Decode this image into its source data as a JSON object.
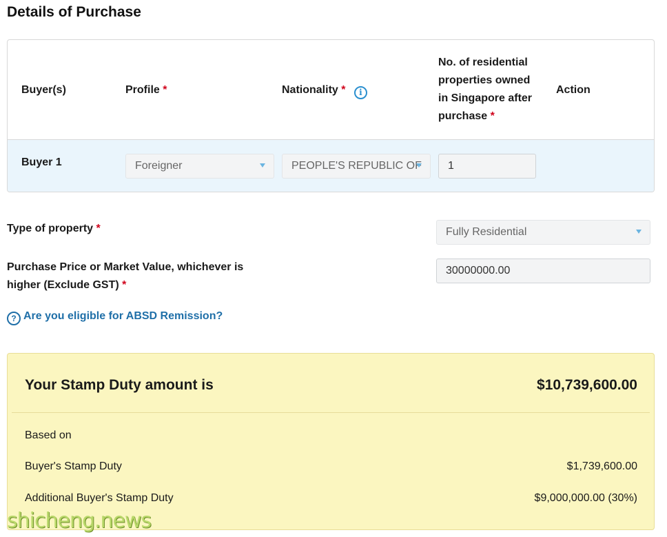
{
  "page": {
    "title": "Details of Purchase"
  },
  "buyers_table": {
    "headers": {
      "buyers": "Buyer(s)",
      "profile": "Profile",
      "nationality": "Nationality",
      "properties_owned": "No. of residential properties owned in Singapore after purchase",
      "action": "Action"
    },
    "required_mark": "*",
    "info_glyph": "i",
    "rows": [
      {
        "buyer_label": "Buyer 1",
        "profile_value": "Foreigner",
        "nationality_value": "PEOPLE'S REPUBLIC OF",
        "properties_owned_value": "1"
      }
    ]
  },
  "form": {
    "property_type_label": "Type of property",
    "property_type_value": "Fully Residential",
    "price_label": "Purchase Price or Market Value, whichever is higher (Exclude GST)",
    "price_value": "30000000.00",
    "remission_link": "Are you eligible for ABSD Remission?",
    "help_glyph": "?"
  },
  "result": {
    "title": "Your Stamp Duty amount is",
    "total": "$10,739,600.00",
    "based_on": "Based on",
    "lines": [
      {
        "label": "Buyer's Stamp Duty",
        "value": "$1,739,600.00"
      },
      {
        "label": "Additional Buyer's Stamp Duty",
        "value": "$9,000,000.00 (30%)"
      }
    ]
  },
  "watermark": "shicheng.news",
  "colors": {
    "accent_blue": "#1f6fa8",
    "required_red": "#d0021b",
    "row_highlight": "#eaf5fc",
    "result_bg": "#fbf6c0"
  }
}
